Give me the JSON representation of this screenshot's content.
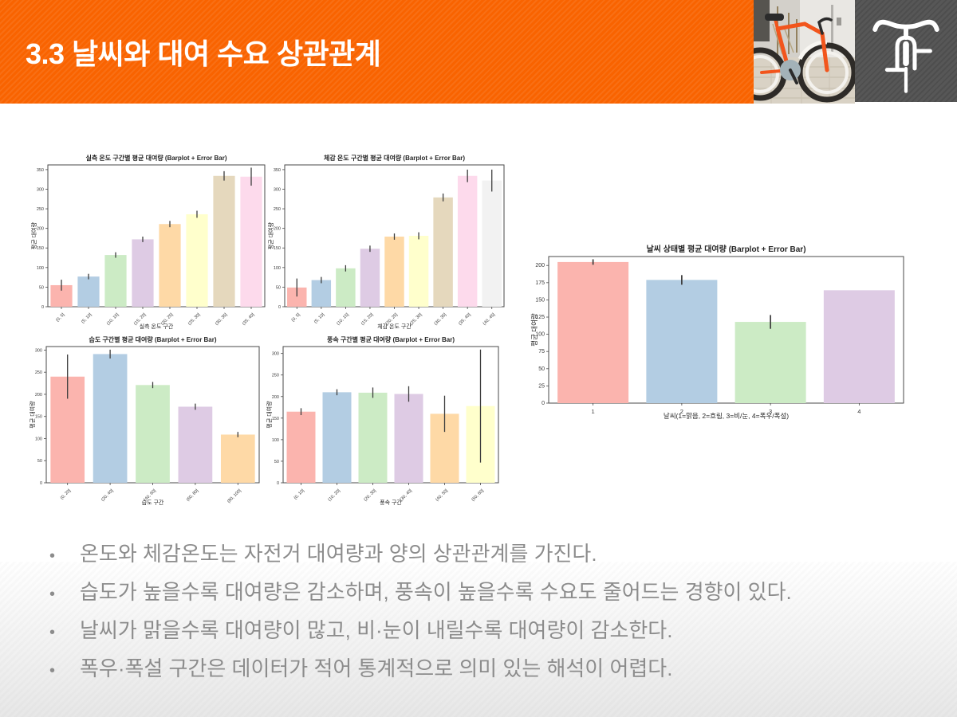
{
  "header": {
    "title": "3.3 날씨와 대여 수요 상관관계",
    "accent_color": "#f96300",
    "icon_box_color": "#575757",
    "photo_icon": "orange-bicycle-photo",
    "corner_icon": "bicycle-front-icon"
  },
  "bullets": [
    "온도와 체감온도는 자전거 대여량과 양의 상관관계를 가진다.",
    "습도가 높을수록 대여량은 감소하며, 풍속이 높을수록 수요도 줄어드는 경향이 있다.",
    "날씨가 맑을수록 대여량이 많고, 비·눈이 내릴수록 대여량이 감소한다.",
    "폭우·폭설 구간은 데이터가 적어 통계적으로 의미 있는 해석이 어렵다."
  ],
  "palette_pastel1": [
    "#fbb4ae",
    "#b3cde3",
    "#ccebc5",
    "#decbe4",
    "#fed9a6",
    "#ffffcc",
    "#e5d8bd",
    "#fddaec",
    "#f2f2f2"
  ],
  "error_bar_color": "#3d3d3d",
  "chart_data": [
    {
      "type": "bar",
      "title": "실측 온도 구간별 평균 대여량 (Barplot + Error Bar)",
      "xlabel": "실측 온도 구간",
      "ylabel": "평균 대여량",
      "categories": [
        "(0, 5]",
        "(5, 10]",
        "(10, 15]",
        "(15, 20]",
        "(20, 25]",
        "(25, 30]",
        "(30, 35]",
        "(35, 40]"
      ],
      "values": [
        55,
        77,
        132,
        172,
        211,
        236,
        334,
        332
      ],
      "errors": [
        14,
        7,
        7,
        7,
        8,
        9,
        12,
        23
      ],
      "ylim": [
        0,
        362
      ],
      "yticks": [
        0,
        50,
        100,
        150,
        200,
        250,
        300,
        350
      ],
      "rotate_xticks": true,
      "grid": false,
      "legend": null
    },
    {
      "type": "bar",
      "title": "체감 온도 구간별 평균 대여량 (Barplot + Error Bar)",
      "xlabel": "체감 온도 구간",
      "ylabel": "평균 대여량",
      "categories": [
        "(0, 5]",
        "(5, 10]",
        "(10, 15]",
        "(15, 20]",
        "(20, 25]",
        "(25, 30]",
        "(30, 35]",
        "(35, 40]",
        "(40, 45]"
      ],
      "values": [
        49,
        68,
        98,
        148,
        179,
        181,
        279,
        334,
        322
      ],
      "errors": [
        23,
        8,
        8,
        8,
        8,
        9,
        10,
        16,
        28
      ],
      "ylim": [
        0,
        362
      ],
      "yticks": [
        0,
        50,
        100,
        150,
        200,
        250,
        300,
        350
      ],
      "rotate_xticks": true,
      "grid": false,
      "legend": null
    },
    {
      "type": "bar",
      "title": "습도 구간별 평균 대여량 (Barplot + Error Bar)",
      "xlabel": "습도 구간",
      "ylabel": "평균 대여량",
      "categories": [
        "(0, 20]",
        "(20, 40]",
        "(40, 60]",
        "(60, 80]",
        "(80, 100]"
      ],
      "values": [
        240,
        291,
        221,
        172,
        109
      ],
      "errors": [
        50,
        10,
        7,
        7,
        6
      ],
      "ylim": [
        0,
        308
      ],
      "yticks": [
        0,
        50,
        100,
        150,
        200,
        250,
        300
      ],
      "rotate_xticks": true,
      "grid": false,
      "legend": null
    },
    {
      "type": "bar",
      "title": "풍속 구간별 평균 대여량 (Barplot + Error Bar)",
      "xlabel": "풍속 구간",
      "ylabel": "평균 대여량",
      "categories": [
        "(0, 10]",
        "(10, 20]",
        "(20, 30]",
        "(30, 40]",
        "(40, 50]",
        "(50, 60]"
      ],
      "values": [
        165,
        210,
        209,
        206,
        160,
        178
      ],
      "errors": [
        8,
        7,
        12,
        18,
        42,
        131
      ],
      "ylim": [
        0,
        316
      ],
      "yticks": [
        0,
        50,
        100,
        150,
        200,
        250,
        300
      ],
      "rotate_xticks": true,
      "grid": false,
      "legend": null
    },
    {
      "type": "bar",
      "title": "날씨 상태별 평균 대여량 (Barplot + Error Bar)",
      "xlabel": "날씨(1=맑음, 2=흐림, 3=비/눈, 4=폭우/폭설)",
      "ylabel": "평균 대여량",
      "categories": [
        "1",
        "2",
        "3",
        "4"
      ],
      "values": [
        205,
        179,
        118,
        164
      ],
      "errors": [
        4,
        7,
        10,
        0
      ],
      "ylim": [
        0,
        213
      ],
      "yticks": [
        0,
        25,
        50,
        75,
        100,
        125,
        150,
        175,
        200
      ],
      "rotate_xticks": false,
      "grid": false,
      "legend": null
    }
  ]
}
